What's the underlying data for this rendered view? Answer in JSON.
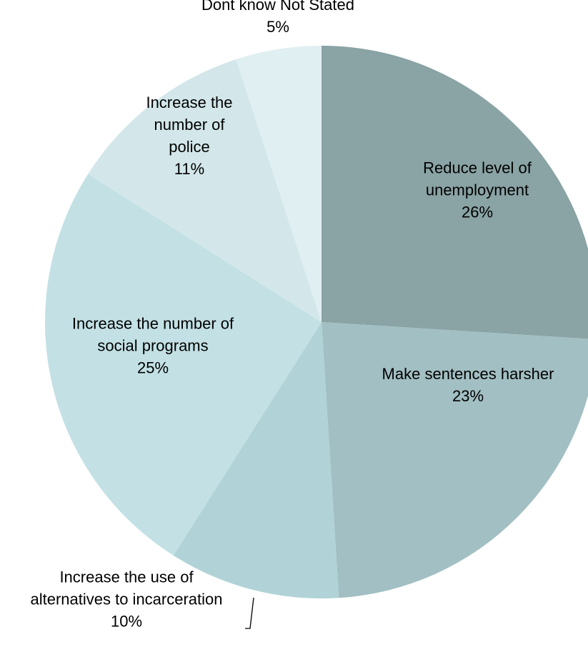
{
  "chart_data": {
    "type": "pie",
    "title": "",
    "slices": [
      {
        "name": "Reduce level of unemployment",
        "value": 26,
        "label_lines": [
          "Reduce level of",
          "unemployment"
        ],
        "pct_label": "26%",
        "color": "#8aa3a5"
      },
      {
        "name": "Make sentences harsher",
        "value": 23,
        "label_lines": [
          "Make sentences harsher"
        ],
        "pct_label": "23%",
        "color": "#a2bfc3"
      },
      {
        "name": "Increase the use of alternatives to incarceration",
        "value": 10,
        "label_lines": [
          "Increase the use of",
          "alternatives to incarceration"
        ],
        "pct_label": "10%",
        "color": "#b1d3d7"
      },
      {
        "name": "Increase the number of social programs",
        "value": 25,
        "label_lines": [
          "Increase the number of",
          "social programs"
        ],
        "pct_label": "25%",
        "color": "#c3e1e5"
      },
      {
        "name": "Increase the number of police",
        "value": 11,
        "label_lines": [
          "Increase the",
          "number of",
          "police"
        ],
        "pct_label": "11%",
        "color": "#d3e7ea"
      },
      {
        "name": "Dont know Not Stated",
        "value": 5,
        "label_lines": [
          "Dont know Not Stated"
        ],
        "pct_label": "5%",
        "color": "#e0eff2"
      }
    ],
    "start_angle_deg": 0,
    "direction": "clockwise",
    "legend": "none"
  }
}
